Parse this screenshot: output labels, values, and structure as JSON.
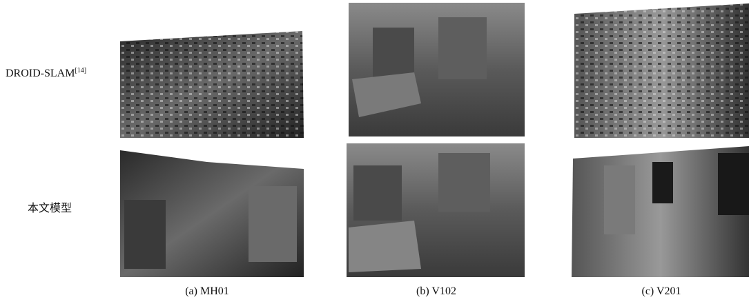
{
  "rows": [
    {
      "label": "DROID-SLAM",
      "citation": "[14]"
    },
    {
      "label": "本文模型"
    }
  ],
  "columns": [
    {
      "caption": "(a) MH01"
    },
    {
      "caption": "(b) V102"
    },
    {
      "caption": "(c) V201"
    }
  ]
}
